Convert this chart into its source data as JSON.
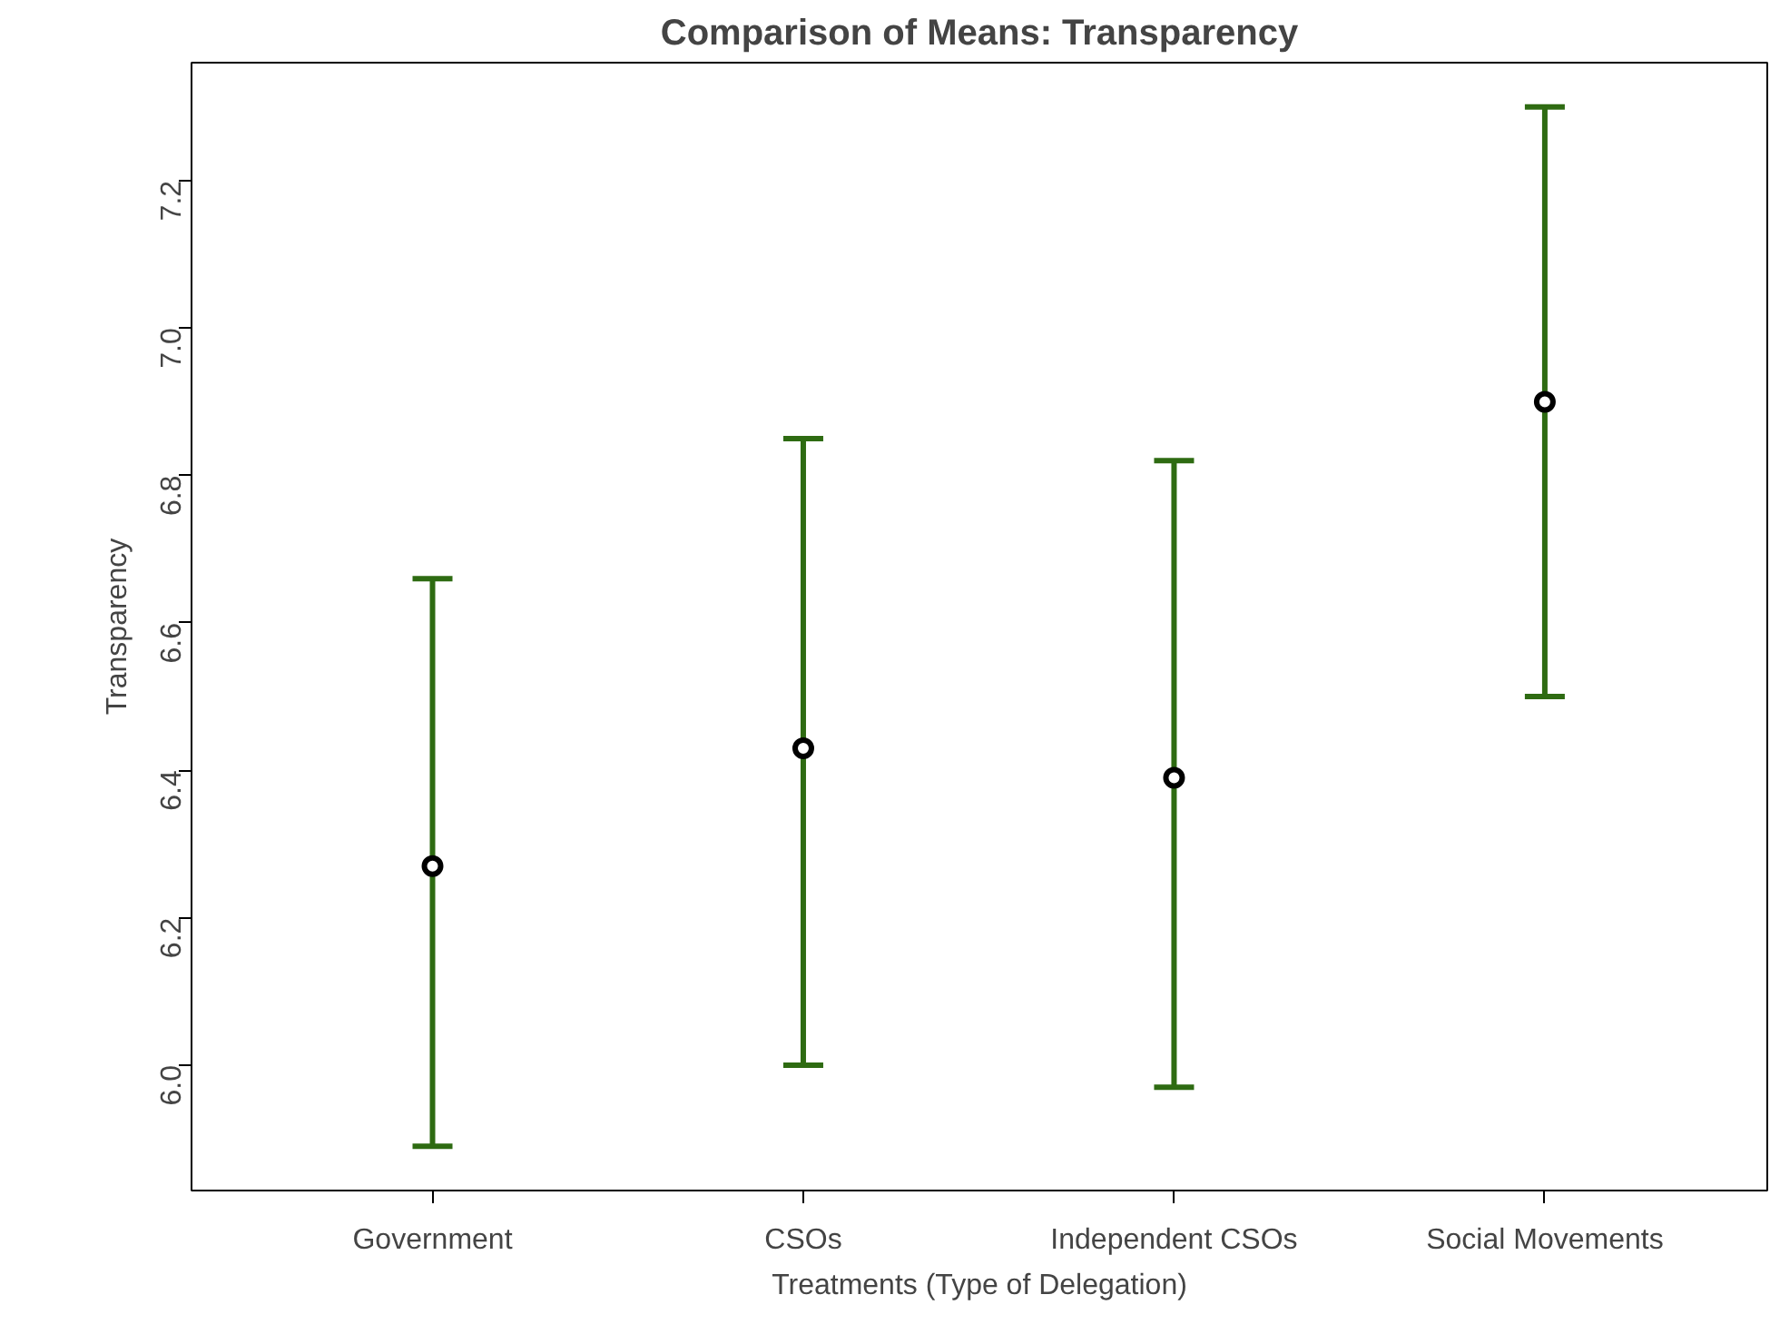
{
  "chart_data": {
    "type": "scatter",
    "title": "Comparison of Means: Transparency",
    "xlabel": "Treatments (Type of Delegation)",
    "ylabel": "Transparency",
    "categories": [
      "Government",
      "CSOs",
      "Independent CSOs",
      "Social Movements"
    ],
    "values": [
      6.27,
      6.43,
      6.39,
      6.9
    ],
    "errors": [
      [
        5.89,
        6.66
      ],
      [
        6.0,
        6.85
      ],
      [
        5.97,
        6.82
      ],
      [
        6.5,
        7.3
      ]
    ],
    "ylim": [
      5.83,
      7.36
    ],
    "yticks": [
      {
        "value": 6.0,
        "label": "6.0"
      },
      {
        "value": 6.2,
        "label": "6.2"
      },
      {
        "value": 6.4,
        "label": "6.4"
      },
      {
        "value": 6.6,
        "label": "6.6"
      },
      {
        "value": 6.8,
        "label": "6.8"
      },
      {
        "value": 7.0,
        "label": "7.0"
      },
      {
        "value": 7.2,
        "label": "7.2"
      }
    ],
    "marker": "circle",
    "color": "#000000",
    "grid": false
  }
}
